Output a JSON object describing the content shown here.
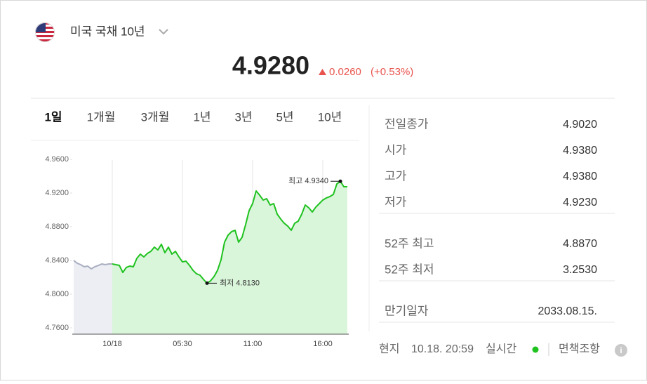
{
  "header": {
    "title": "미국 국채 10년",
    "price": "4.9280",
    "change": "0.0260",
    "change_pct": "(+0.53%)"
  },
  "tabs": [
    "1일",
    "1개월",
    "3개월",
    "1년",
    "3년",
    "5년",
    "10년"
  ],
  "active_tab": 0,
  "stats": [
    [
      [
        "전일종가",
        "4.9020"
      ],
      [
        "시가",
        "4.9380"
      ],
      [
        "고가",
        "4.9380"
      ],
      [
        "저가",
        "4.9230"
      ]
    ],
    [
      [
        "52주 최고",
        "4.8870"
      ],
      [
        "52주 최저",
        "3.2530"
      ]
    ],
    [
      [
        "만기일자",
        "2033.08.15."
      ]
    ]
  ],
  "footer": {
    "local": "현지",
    "time": "10.18. 20:59",
    "realtime": "실시간",
    "disclaimer": "면책조항"
  },
  "chart_data": {
    "type": "line",
    "categories": [
      null,
      null,
      null,
      null,
      null,
      null,
      null,
      null,
      null,
      null,
      null,
      "10/18",
      null,
      null,
      null,
      null,
      null,
      null,
      null,
      null,
      null,
      null,
      null,
      null,
      null,
      null,
      null,
      null,
      null,
      null,
      null,
      "05:30",
      null,
      null,
      null,
      null,
      null,
      null,
      null,
      null,
      null,
      null,
      null,
      null,
      null,
      null,
      null,
      null,
      null,
      null,
      null,
      "11:00",
      null,
      null,
      null,
      null,
      null,
      null,
      null,
      null,
      null,
      null,
      null,
      null,
      null,
      null,
      null,
      null,
      null,
      null,
      null,
      "16:00",
      null,
      null,
      null,
      null,
      null,
      null,
      null
    ],
    "series": [
      {
        "color": "#a9aec0",
        "fill": "#eceef4",
        "values": [
          4.84,
          4.8367,
          4.835,
          4.8325,
          4.8333,
          4.83,
          4.8325,
          4.834,
          4.8358,
          4.835,
          4.8358,
          4.8358,
          null,
          null,
          null,
          null,
          null,
          null,
          null,
          null,
          null,
          null,
          null,
          null,
          null,
          null,
          null,
          null,
          null,
          null,
          null,
          null,
          null,
          null,
          null,
          null,
          null,
          null,
          null,
          null,
          null,
          null,
          null,
          null,
          null,
          null,
          null,
          null,
          null,
          null,
          null,
          null,
          null,
          null,
          null,
          null,
          null,
          null,
          null,
          null,
          null,
          null,
          null,
          null,
          null,
          null,
          null,
          null,
          null,
          null,
          null,
          null,
          null,
          null,
          null,
          null,
          null,
          null,
          null
        ]
      },
      {
        "color": "#1fc21f",
        "fill": "#d9f5da",
        "values": [
          null,
          null,
          null,
          null,
          null,
          null,
          null,
          null,
          null,
          null,
          null,
          4.8358,
          4.835,
          4.8342,
          4.8258,
          4.8317,
          4.8333,
          4.8325,
          4.8425,
          4.8475,
          4.8442,
          4.8483,
          4.8508,
          4.8558,
          4.8525,
          4.8592,
          4.8492,
          4.8558,
          4.8475,
          4.8508,
          4.8442,
          4.8383,
          4.8392,
          4.8342,
          4.8283,
          4.8242,
          4.8225,
          4.8175,
          4.813,
          4.8158,
          4.8208,
          4.8283,
          4.8408,
          4.8617,
          4.87,
          4.8742,
          4.8758,
          4.8617,
          4.8675,
          4.8825,
          4.8992,
          4.9075,
          4.9225,
          4.9175,
          4.9117,
          4.9133,
          4.9058,
          4.9075,
          4.895,
          4.8892,
          4.8842,
          4.8808,
          4.8758,
          4.8842,
          4.8867,
          4.895,
          4.9058,
          4.9025,
          4.8975,
          4.9033,
          4.9075,
          4.9117,
          4.9142,
          4.9158,
          4.9183,
          4.9308,
          4.934,
          4.9275,
          4.9275
        ]
      }
    ],
    "annotations": [
      {
        "kind": "max",
        "text": "최고 4.9340"
      },
      {
        "kind": "min",
        "text": "최저 4.8130"
      }
    ],
    "ylim": [
      4.7525,
      4.9825
    ],
    "yticks": [
      {
        "value": 4.96,
        "label": "4.9600"
      },
      {
        "value": 4.92,
        "label": "4.9200"
      },
      {
        "value": 4.88,
        "label": "4.8800"
      },
      {
        "value": 4.84,
        "label": "4.8400"
      },
      {
        "value": 4.8,
        "label": "4.8000"
      },
      {
        "value": 4.76,
        "label": "4.7600"
      }
    ]
  }
}
